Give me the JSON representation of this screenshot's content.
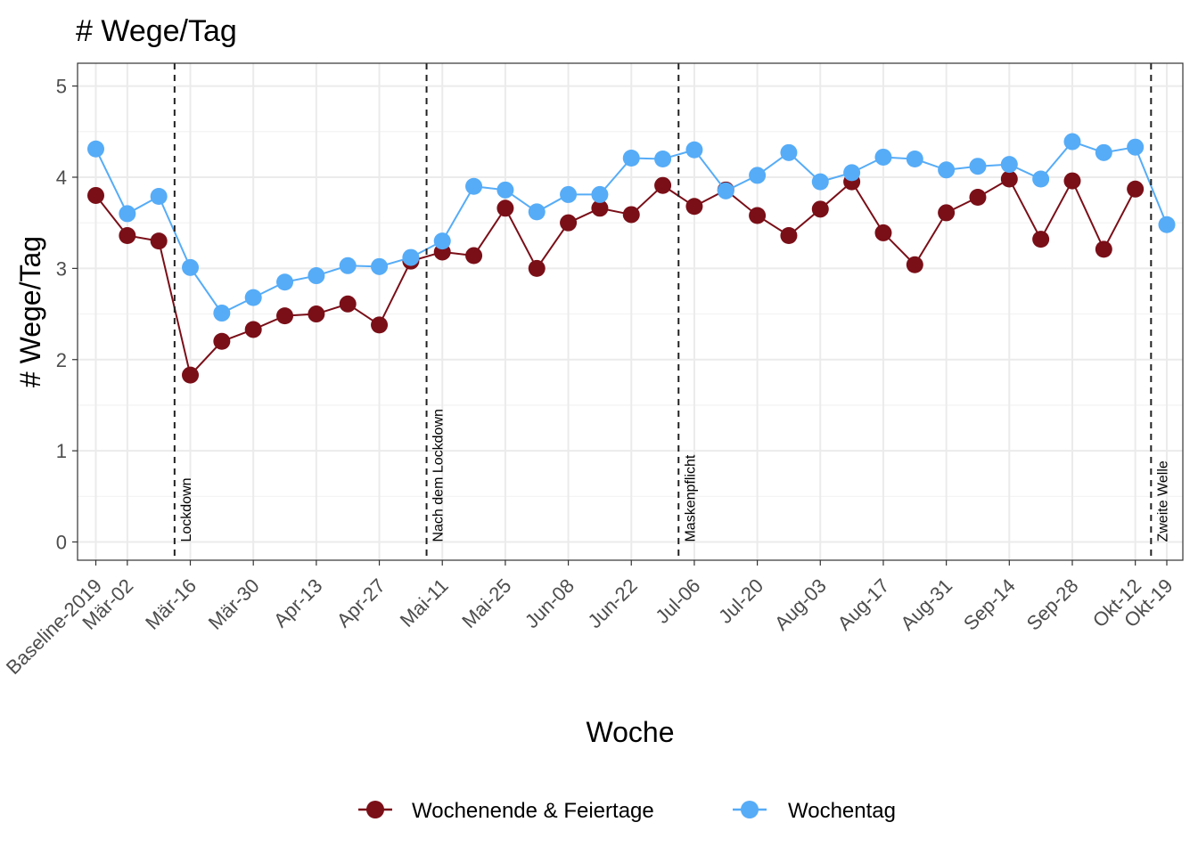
{
  "chart_data": {
    "type": "line",
    "title": "# Wege/Tag",
    "xlabel": "Woche",
    "ylabel": "# Wege/Tag",
    "ylim": [
      -0.2,
      5.25
    ],
    "yticks": [
      0,
      1,
      2,
      3,
      4,
      5
    ],
    "grid": true,
    "legend_position": "bottom",
    "x_tick_labels": [
      "Baseline-2019",
      "Mär-02",
      "Mär-16",
      "Mär-30",
      "Apr-13",
      "Apr-27",
      "Mai-11",
      "Mai-25",
      "Jun-08",
      "Jun-22",
      "Jul-06",
      "Jul-20",
      "Aug-03",
      "Aug-17",
      "Aug-31",
      "Sep-14",
      "Sep-28",
      "Okt-12",
      "Okt-19"
    ],
    "categories": [
      "Baseline-2019",
      "Mär-02",
      "Mär-09",
      "Mär-16",
      "Mär-23",
      "Mär-30",
      "Apr-06",
      "Apr-13",
      "Apr-20",
      "Apr-27",
      "Mai-04",
      "Mai-11",
      "Mai-18",
      "Mai-25",
      "Jun-01",
      "Jun-08",
      "Jun-15",
      "Jun-22",
      "Jun-29",
      "Jul-06",
      "Jul-13",
      "Jul-20",
      "Jul-27",
      "Aug-03",
      "Aug-10",
      "Aug-17",
      "Aug-24",
      "Aug-31",
      "Sep-07",
      "Sep-14",
      "Sep-21",
      "Sep-28",
      "Okt-05",
      "Okt-12",
      "Okt-19"
    ],
    "series": [
      {
        "name": "Wochenende & Feiertage",
        "color": "#7a0f18",
        "values": [
          3.8,
          3.36,
          3.3,
          1.83,
          2.2,
          2.33,
          2.48,
          2.5,
          2.61,
          2.38,
          3.08,
          3.18,
          3.14,
          3.66,
          3.0,
          3.5,
          3.66,
          3.59,
          3.91,
          3.68,
          3.86,
          3.58,
          3.36,
          3.65,
          3.95,
          3.39,
          3.04,
          3.61,
          3.78,
          3.98,
          3.32,
          3.96,
          3.21,
          3.87,
          null
        ]
      },
      {
        "name": "Wochentag",
        "color": "#56acf7",
        "values": [
          4.31,
          3.6,
          3.79,
          3.01,
          2.51,
          2.68,
          2.85,
          2.92,
          3.03,
          3.02,
          3.12,
          3.3,
          3.9,
          3.86,
          3.62,
          3.81,
          3.81,
          4.21,
          4.2,
          4.3,
          3.85,
          4.02,
          4.27,
          3.95,
          4.05,
          4.22,
          4.2,
          4.08,
          4.12,
          4.14,
          3.98,
          4.39,
          4.27,
          4.33,
          3.48
        ]
      }
    ],
    "annotations": [
      {
        "label": "Lockdown",
        "between": [
          "Mär-09",
          "Mär-16"
        ]
      },
      {
        "label": "Nach dem Lockdown",
        "between": [
          "Mai-04",
          "Mai-11"
        ]
      },
      {
        "label": "Maskenpflicht",
        "between": [
          "Jun-29",
          "Jul-06"
        ]
      },
      {
        "label": "Zweite Welle",
        "between": [
          "Okt-12",
          "Okt-19"
        ]
      }
    ]
  }
}
